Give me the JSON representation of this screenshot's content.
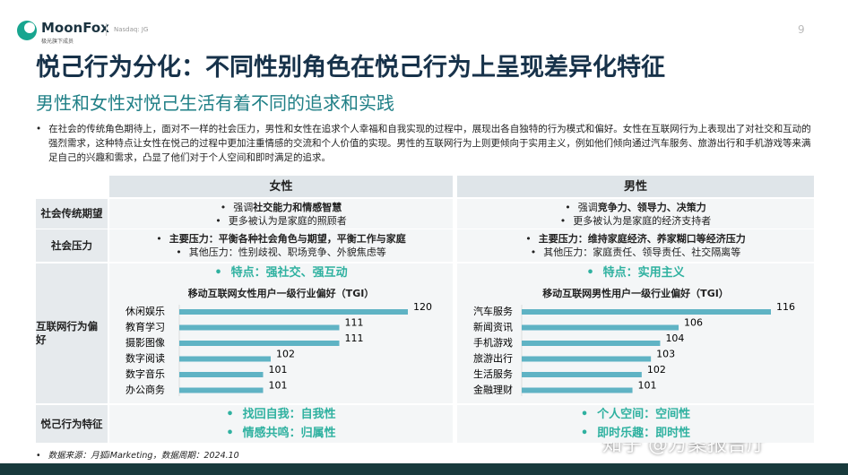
{
  "header": {
    "logo": "MoonFox",
    "tagline": "极光旗下成员",
    "exchange": "Nasdaq: JG",
    "page": "9"
  },
  "title": "悦己行为分化：不同性别角色在悦己行为上呈现差异化特征",
  "subtitle": "男性和女性对悦己生活有着不同的追求和实践",
  "intro": "在社会的传统角色期待上，面对不一样的社会压力，男性和女性在追求个人幸福和自我实现的过程中，展现出各自独特的行为模式和偏好。女性在互联网行为上表现出了对社交和互动的强烈需求，这种特点让女性在悦己的过程中更加注重情感的交流和个人价值的实现。男性的互联网行为上则更倾向于实用主义，例如他们倾向通过汽车服务、旅游出行和手机游戏等来满足自己的兴趣和需求，凸显了他们对于个人空间和即时满足的追求。",
  "table": {
    "columns": [
      "女性",
      "男性"
    ],
    "rows": [
      {
        "label": "社会传统期望",
        "female": [
          {
            "lead": "强调",
            "strong": "社交能力和情感智慧"
          },
          {
            "lead": "更多被认为是家庭的照顾者"
          }
        ],
        "male": [
          {
            "lead": "强调",
            "strong": "竞争力、领导力、决策力"
          },
          {
            "lead": "更多被认为是家庭的经济支持者"
          }
        ]
      },
      {
        "label": "社会压力",
        "female": [
          {
            "strong": "主要压力：平衡各种社会角色与期望，平衡工作与家庭"
          },
          {
            "lead": "其他压力：性别歧视、职场竞争、外貌焦虑等"
          }
        ],
        "male": [
          {
            "strong": "主要压力：维持家庭经济、养家糊口等经济压力"
          },
          {
            "lead": "其他压力：家庭责任、领导责任、社交隔离等"
          }
        ]
      },
      {
        "label": "互联网行为偏好",
        "female": {
          "feature": "特点：强社交、强互动",
          "chart": {
            "type": "bar",
            "orientation": "horizontal",
            "title": "移动互联网女性用户一级行业偏好（TGI）",
            "categories": [
              "休闲娱乐",
              "教育学习",
              "摄影图像",
              "数字阅读",
              "数字音乐",
              "办公商务"
            ],
            "values": [
              120,
              111,
              111,
              102,
              101,
              101
            ],
            "color": "#5fb3c4",
            "xlim": [
              90,
              120
            ]
          }
        },
        "male": {
          "feature": "特点：实用主义",
          "chart": {
            "type": "bar",
            "orientation": "horizontal",
            "title": "移动互联网男性用户一级行业偏好（TGI）",
            "categories": [
              "汽车服务",
              "新闻资讯",
              "手机游戏",
              "旅游出行",
              "生活服务",
              "金融理财"
            ],
            "values": [
              116,
              106,
              104,
              103,
              102,
              101
            ],
            "color": "#5fb3c4",
            "xlim": [
              89,
              116
            ]
          }
        }
      },
      {
        "label": "悦己行为特征",
        "female": [
          "找回自我：自我性",
          "情感共鸣：归属性"
        ],
        "male": [
          "个人空间：空间性",
          "即时乐趣：即时性"
        ]
      }
    ]
  },
  "source": "数据来源：月狐iMarketing，数据周期：2024.10",
  "watermark": "知乎 @方案报告厅"
}
